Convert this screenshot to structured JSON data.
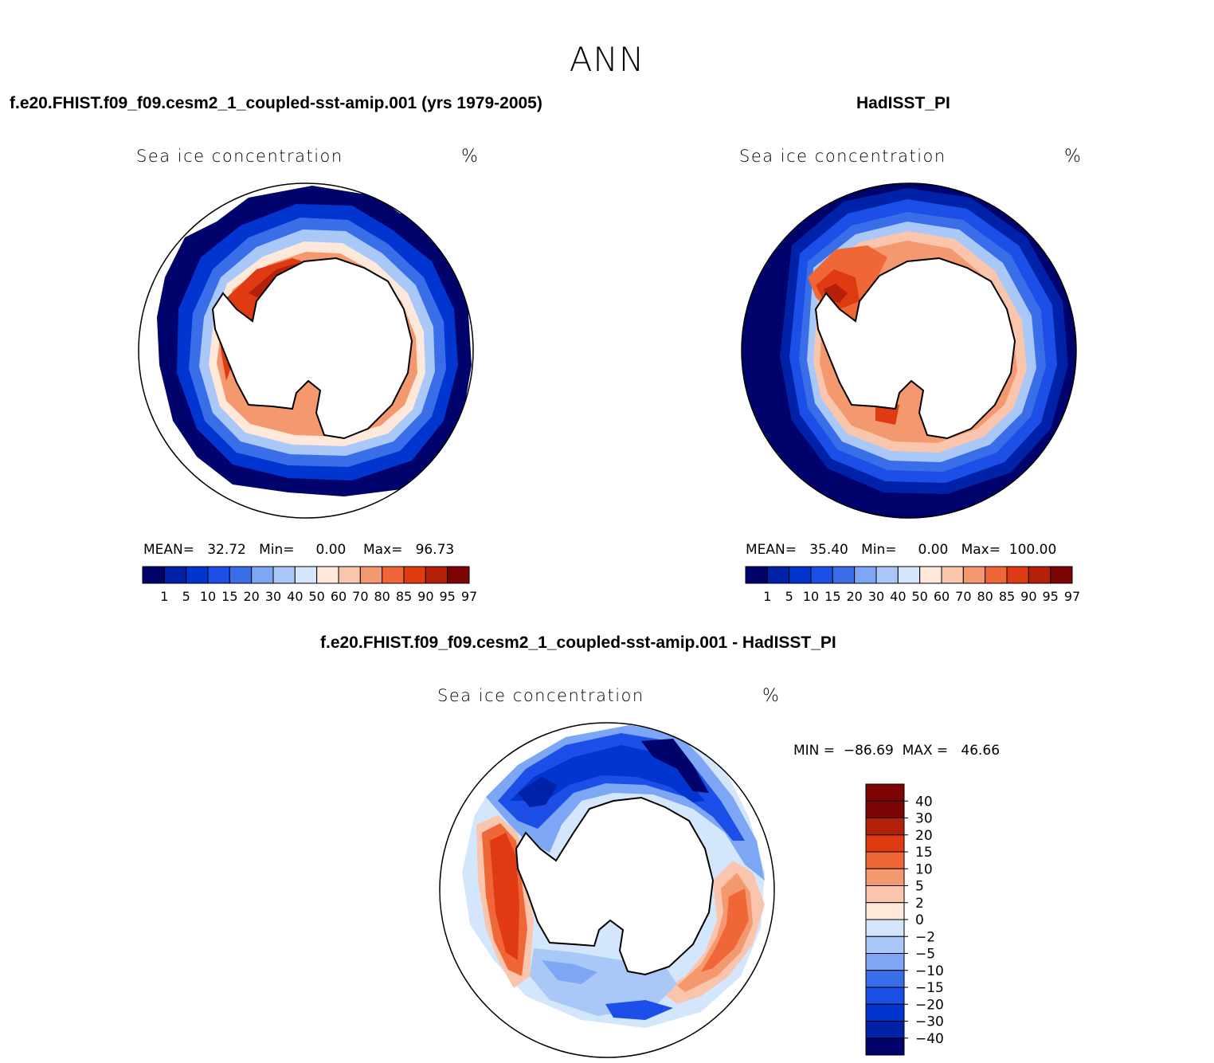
{
  "title": "ANN",
  "panels": {
    "model": {
      "case_title": "f.e20.FHIST.f09_f09.cesm2_1_coupled-sst-amip.001 (yrs 1979-2005)",
      "variable": "Sea ice concentration",
      "unit": "%",
      "stats": "MEAN=   32.72   Min=     0.00    Max=   96.73"
    },
    "obs": {
      "case_title": "HadISST_PI",
      "variable": "Sea ice concentration",
      "unit": "%",
      "stats": "MEAN=   35.40   Min=     0.00   Max=  100.00"
    },
    "diff": {
      "case_title": "f.e20.FHIST.f09_f09.cesm2_1_coupled-sst-amip.001 - HadISST_PI",
      "variable": "Sea ice concentration",
      "unit": "%",
      "stats": "MIN =  −86.69  MAX =   46.66"
    }
  },
  "colorbar_abs": {
    "colors": [
      "#00036b",
      "#0022a8",
      "#0035d0",
      "#1c4fe8",
      "#3a6ee8",
      "#7da6f5",
      "#a9c8f8",
      "#d4e6fb",
      "#fde8da",
      "#f9c5ac",
      "#f4996f",
      "#ef6737",
      "#e03a12",
      "#b42008",
      "#7c0404"
    ],
    "labels": [
      "1",
      "5",
      "10",
      "15",
      "20",
      "30",
      "40",
      "50",
      "60",
      "70",
      "80",
      "85",
      "90",
      "95",
      "97"
    ]
  },
  "colorbar_diff": {
    "colors": [
      "#7c0404",
      "#b42008",
      "#e03a12",
      "#ef6737",
      "#f4996f",
      "#f9c5ac",
      "#fde8da",
      "#d4e6fb",
      "#a9c8f8",
      "#7da6f5",
      "#3a6ee8",
      "#1c4fe8",
      "#0035d0",
      "#0022a8",
      "#00036b"
    ],
    "labels": [
      "40",
      "30",
      "20",
      "15",
      "10",
      "5",
      "2",
      "0",
      "−2",
      "−5",
      "−10",
      "−15",
      "−20",
      "−30",
      "−40"
    ]
  }
}
